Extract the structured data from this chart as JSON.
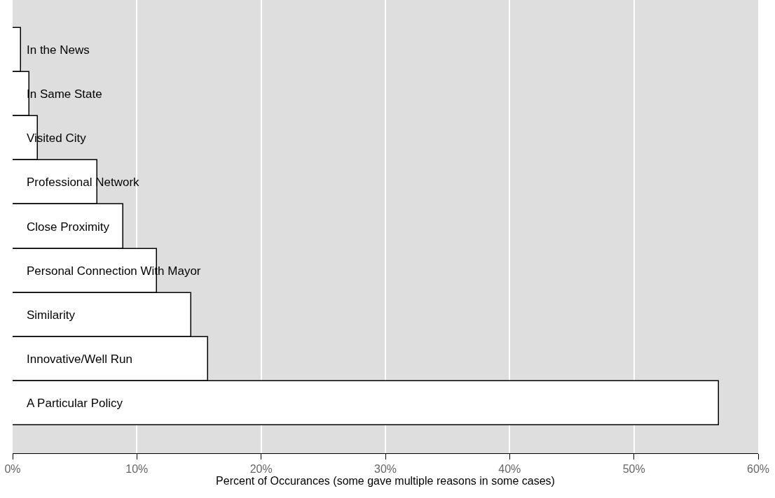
{
  "chart_data": {
    "type": "bar",
    "orientation": "horizontal",
    "xlabel": "Percent of Occurances (some gave multiple reasons in some cases)",
    "categories": [
      "In the News",
      "In Same State",
      "Visited City",
      "Professional Network",
      "Close Proximity",
      "Personal Connection With Mayor",
      "Similarity",
      "Innovative/Well Run",
      "A Particular Policy"
    ],
    "values": [
      0.68,
      1.35,
      2.05,
      6.85,
      8.9,
      11.64,
      14.37,
      15.74,
      56.85
    ],
    "color": "#ffffff",
    "xlim": [
      0,
      60
    ],
    "xticks": [
      {
        "value": 0,
        "label": "0%"
      },
      {
        "value": 10,
        "label": "10%"
      },
      {
        "value": 20,
        "label": "20%"
      },
      {
        "value": 30,
        "label": "30%"
      },
      {
        "value": 40,
        "label": "40%"
      },
      {
        "value": 50,
        "label": "50%"
      },
      {
        "value": 60,
        "label": "60%"
      }
    ],
    "grid": "x",
    "tick_labels": "x"
  }
}
